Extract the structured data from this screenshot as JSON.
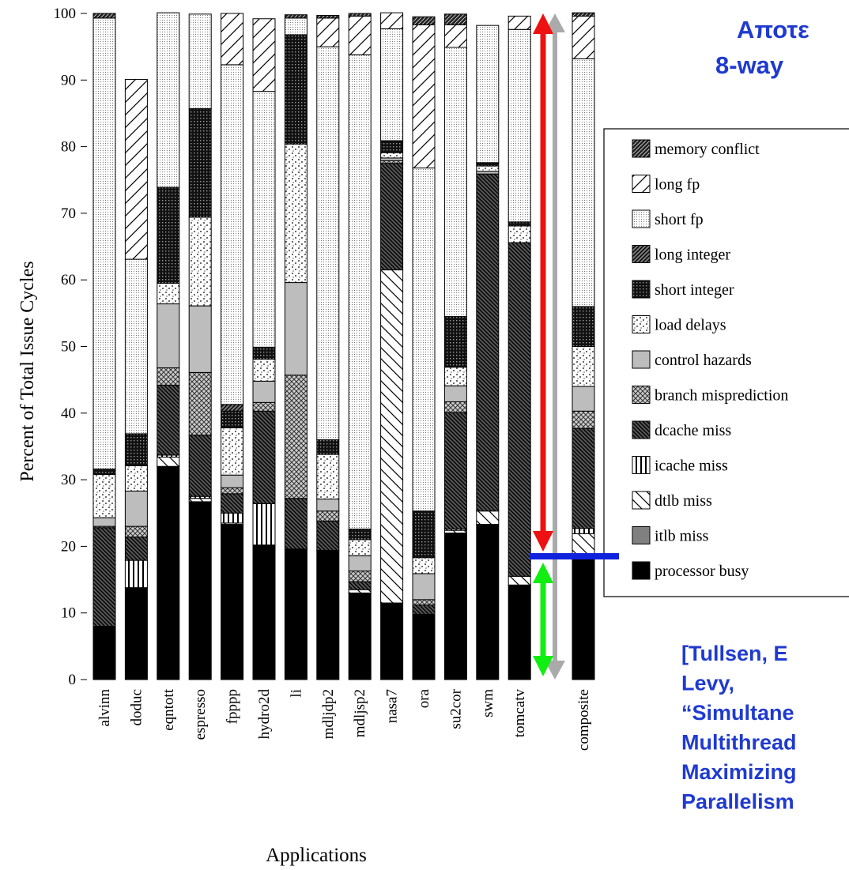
{
  "title": {
    "line1": "Αποτε",
    "line2": "8-way"
  },
  "citation": {
    "lines": [
      "[Tullsen, E",
      "Levy,",
      "“Simultane",
      "Multithread",
      "Maximizing",
      "Parallelism"
    ]
  },
  "colors": {
    "title_text": "#1f3ad1",
    "citation_text": "#1f3ad1",
    "red_arrow": "#ee1111",
    "green_arrow": "#11ee11",
    "gray_arrow": "#aaaaaa",
    "blue_line": "#1122dd"
  },
  "chart_data": {
    "type": "bar",
    "stacked": true,
    "xlabel": "Applications",
    "ylabel": "Percent of Total Issue Cycles",
    "ylim": [
      0,
      100
    ],
    "yticks": [
      0,
      10,
      20,
      30,
      40,
      50,
      60,
      70,
      80,
      90,
      100
    ],
    "grid": false,
    "legend_position": "right",
    "categories": [
      "alvinn",
      "doduc",
      "eqntott",
      "espresso",
      "fpppp",
      "hydro2d",
      "li",
      "mdljdp2",
      "mdljsp2",
      "nasa7",
      "ora",
      "su2cor",
      "swm",
      "tomcatv",
      "",
      "composite"
    ],
    "series": [
      {
        "name": "processor busy",
        "pattern": "black",
        "values": [
          8,
          13.8,
          32,
          26.7,
          23.3,
          20.2,
          19.6,
          19.4,
          13,
          11.5,
          9.8,
          22,
          23.3,
          14.2,
          0,
          18.2
        ]
      },
      {
        "name": "itlb miss",
        "pattern": "gray",
        "values": [
          0,
          0,
          0,
          0,
          0,
          0,
          0,
          0,
          0,
          0,
          0,
          0,
          0,
          0,
          0,
          0
        ]
      },
      {
        "name": "dtlb miss",
        "pattern": "diag-down-light",
        "values": [
          0,
          0,
          1.4,
          0.5,
          0.2,
          0,
          0,
          0,
          0.5,
          50,
          0,
          0.4,
          2,
          1.3,
          0,
          3.7
        ]
      },
      {
        "name": "icache miss",
        "pattern": "vertical",
        "values": [
          0,
          4.1,
          0.3,
          0.3,
          1.5,
          6.2,
          0,
          0,
          0,
          0,
          0,
          0.2,
          0,
          0,
          0,
          0.8
        ]
      },
      {
        "name": "dcache miss",
        "pattern": "diag-down-dense",
        "values": [
          14.8,
          3.5,
          10.5,
          9.2,
          2.9,
          13.9,
          7.6,
          4.4,
          1.2,
          16,
          1.4,
          17.5,
          50.6,
          50.1,
          0,
          15
        ]
      },
      {
        "name": "branch misprediction",
        "pattern": "crosshatch",
        "values": [
          0.2,
          1.6,
          2.6,
          9.4,
          0.9,
          1.3,
          18.5,
          1.5,
          1.6,
          0.4,
          0.8,
          1.6,
          0,
          0,
          0,
          2.6
        ]
      },
      {
        "name": "control hazards",
        "pattern": "light-gray",
        "values": [
          1.3,
          5.3,
          9.6,
          10,
          1.9,
          3.2,
          13.9,
          1.8,
          2.3,
          0.4,
          3.9,
          2.4,
          0.4,
          0,
          0,
          3.7
        ]
      },
      {
        "name": "load delays",
        "pattern": "dots",
        "values": [
          6.5,
          3.8,
          3.1,
          13.3,
          7.1,
          3.3,
          20.8,
          6.7,
          2.4,
          0.8,
          2.4,
          2.8,
          0.8,
          2.5,
          0,
          6
        ]
      },
      {
        "name": "short integer",
        "pattern": "grid-dense",
        "values": [
          0.8,
          4.8,
          14.4,
          16.3,
          2.5,
          1.8,
          16.4,
          2.2,
          1.6,
          1.8,
          7,
          7.6,
          0.5,
          0.6,
          0,
          6
        ]
      },
      {
        "name": "long integer",
        "pattern": "diag-up-dense",
        "values": [
          0,
          0,
          0,
          0,
          1,
          0,
          0,
          0,
          0,
          0,
          0,
          0,
          0,
          0,
          0,
          0
        ]
      },
      {
        "name": "short fp",
        "pattern": "fine-dots",
        "values": [
          67.7,
          26.2,
          26.2,
          14.2,
          51,
          38.4,
          2.5,
          59,
          71.2,
          16.8,
          51.5,
          40.4,
          20.6,
          28.9,
          0,
          37.2
        ]
      },
      {
        "name": "long fp",
        "pattern": "diag-up-light",
        "values": [
          0,
          27,
          0,
          0,
          7.7,
          10.9,
          0,
          4.3,
          5.8,
          2.4,
          21.5,
          3.4,
          0,
          2,
          0,
          6.4
        ]
      },
      {
        "name": "memory conflict",
        "pattern": "diag-up-black",
        "values": [
          0.7,
          0,
          0,
          0,
          0,
          0,
          0.5,
          0.4,
          0.4,
          0,
          1.2,
          1.6,
          0,
          0,
          0,
          0.5
        ]
      }
    ],
    "legend_order": [
      "memory conflict",
      "long fp",
      "short fp",
      "long integer",
      "short integer",
      "load delays",
      "control hazards",
      "branch misprediction",
      "dcache miss",
      "icache miss",
      "dtlb miss",
      "itlb miss",
      "processor busy"
    ],
    "annotations": {
      "horizontal_marker_value": 18.5,
      "red_arrow_range": [
        18.5,
        100
      ],
      "green_arrow_range": [
        0,
        18.5
      ],
      "gray_arrow_range": [
        0,
        100
      ]
    }
  }
}
